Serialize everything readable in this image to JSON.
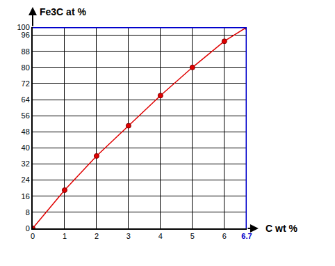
{
  "chart_data": {
    "type": "line",
    "x_label": "C wt %",
    "y_label": "Fe3C at %",
    "x": [
      0,
      1,
      2,
      3,
      4,
      5,
      6,
      6.7
    ],
    "values": [
      0,
      19,
      36,
      51,
      66,
      80,
      93,
      100
    ],
    "color": "#e00000",
    "marker": "circle",
    "xlim": [
      0,
      6.7
    ],
    "ylim": [
      0,
      100
    ],
    "xticks": [
      0,
      1,
      2,
      3,
      4,
      5,
      6,
      6.7
    ],
    "yticks": [
      0,
      8,
      16,
      24,
      32,
      40,
      48,
      56,
      64,
      72,
      80,
      88,
      96,
      100
    ],
    "grid": true
  }
}
